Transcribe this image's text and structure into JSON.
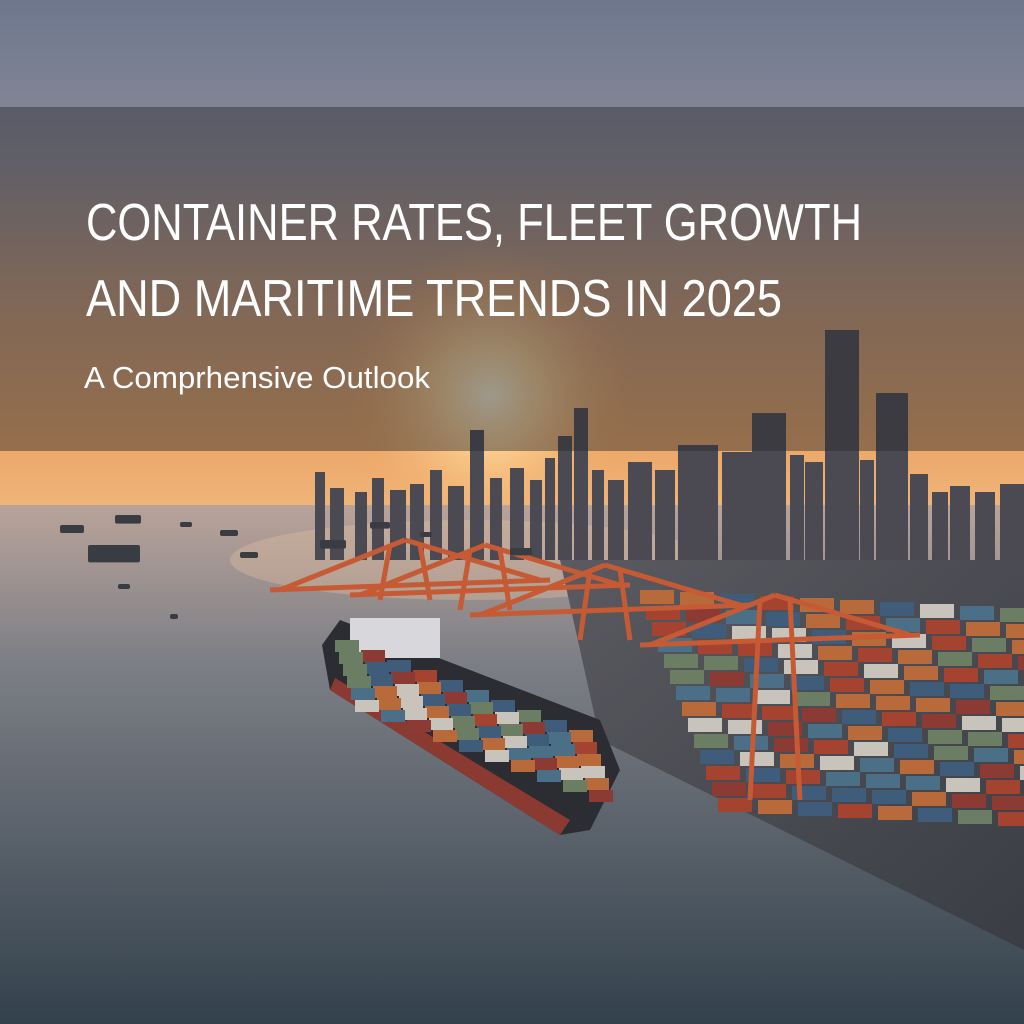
{
  "header": {
    "title_lines": [
      "CONTAINER RATES, FLEET GROWTH",
      "AND MARITIME TRENDS IN 2025"
    ],
    "subtitle": "A Comprhensive Outlook"
  }
}
